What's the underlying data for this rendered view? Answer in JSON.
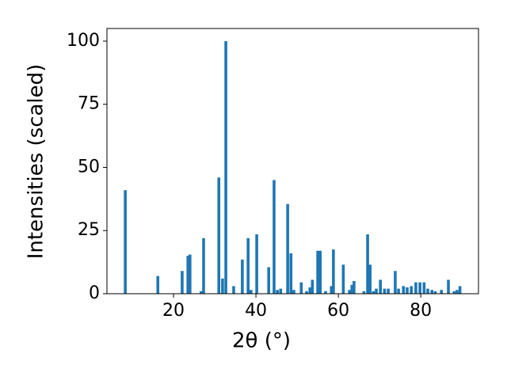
{
  "chart_data": {
    "type": "bar",
    "xlabel": "2θ (°)",
    "ylabel": "Intensities (scaled)",
    "color": "#1f77b4",
    "x": [
      8.3,
      16.2,
      22.1,
      23.5,
      24.0,
      26.7,
      27.3,
      31.0,
      31.9,
      32.7,
      34.6,
      36.7,
      38.1,
      38.8,
      40.2,
      43.1,
      44.4,
      45.2,
      46.0,
      47.7,
      48.5,
      49.2,
      51.0,
      52.3,
      53.1,
      53.7,
      55.0,
      55.6,
      56.9,
      58.3,
      58.8,
      61.2,
      62.7,
      63.3,
      63.8,
      66.2,
      67.1,
      67.7,
      68.5,
      69.2,
      70.2,
      71.2,
      72.1,
      73.8,
      74.6,
      75.8,
      76.7,
      77.7,
      78.8,
      79.8,
      80.8,
      81.7,
      82.7,
      83.5,
      85.0,
      86.7,
      88.1,
      88.8,
      89.5
    ],
    "values": [
      41,
      7,
      9,
      15,
      15.5,
      1,
      22,
      46,
      6,
      100,
      3,
      13.5,
      22,
      1.5,
      23.5,
      10.5,
      45,
      1.5,
      2,
      35.5,
      16,
      1.5,
      4.5,
      1,
      2.5,
      5.5,
      17,
      17,
      1,
      3,
      17.5,
      11.5,
      1.5,
      3.5,
      5,
      1,
      23.5,
      11.5,
      1,
      2,
      5.5,
      2,
      2,
      9,
      2,
      3,
      2.5,
      3,
      4.5,
      4.5,
      4.5,
      2,
      1.5,
      1,
      1.5,
      5.5,
      1,
      1.5,
      3
    ],
    "xlim": [
      3.85,
      94.0
    ],
    "ylim": [
      0,
      105
    ],
    "xticks": [
      20,
      40,
      60,
      80
    ],
    "yticks": [
      0,
      25,
      50,
      75,
      100
    ]
  }
}
